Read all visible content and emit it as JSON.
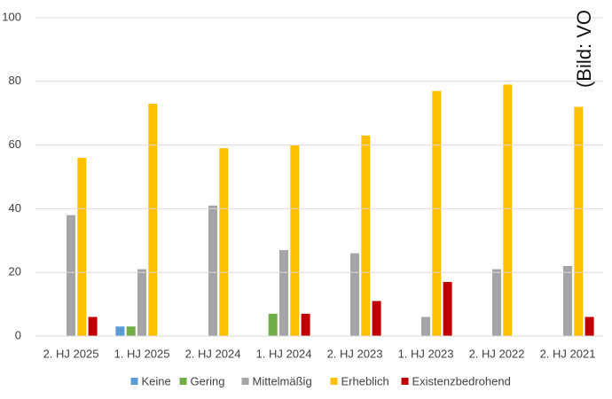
{
  "chart_data": {
    "type": "bar",
    "annotation": "(Bild: VO",
    "categories": [
      "2. HJ 2025",
      "1. HJ 2025",
      "2. HJ 2024",
      "1. HJ 2024",
      "2. HJ 2023",
      "1. HJ 2023",
      "2. HJ 2022",
      "2. HJ 2021"
    ],
    "series": [
      {
        "name": "Keine",
        "color": "#5b9bd5",
        "values": [
          0,
          3,
          0,
          0,
          0,
          0,
          0,
          0
        ]
      },
      {
        "name": "Gering",
        "color": "#70ad47",
        "values": [
          0,
          3,
          0,
          7,
          0,
          0,
          0,
          0
        ]
      },
      {
        "name": "Mittelmäßig",
        "color": "#a5a5a5",
        "values": [
          38,
          21,
          41,
          27,
          26,
          6,
          21,
          22
        ]
      },
      {
        "name": "Erheblich",
        "color": "#ffc000",
        "values": [
          56,
          73,
          59,
          60,
          63,
          77,
          79,
          72
        ]
      },
      {
        "name": "Existenzbedrohend",
        "color": "#c00000",
        "values": [
          6,
          0,
          0,
          7,
          11,
          17,
          0,
          6
        ]
      }
    ],
    "ylim": [
      0,
      100
    ],
    "yticks": [
      0,
      20,
      40,
      60,
      80,
      100
    ],
    "grid": true,
    "legend": "bottom"
  }
}
